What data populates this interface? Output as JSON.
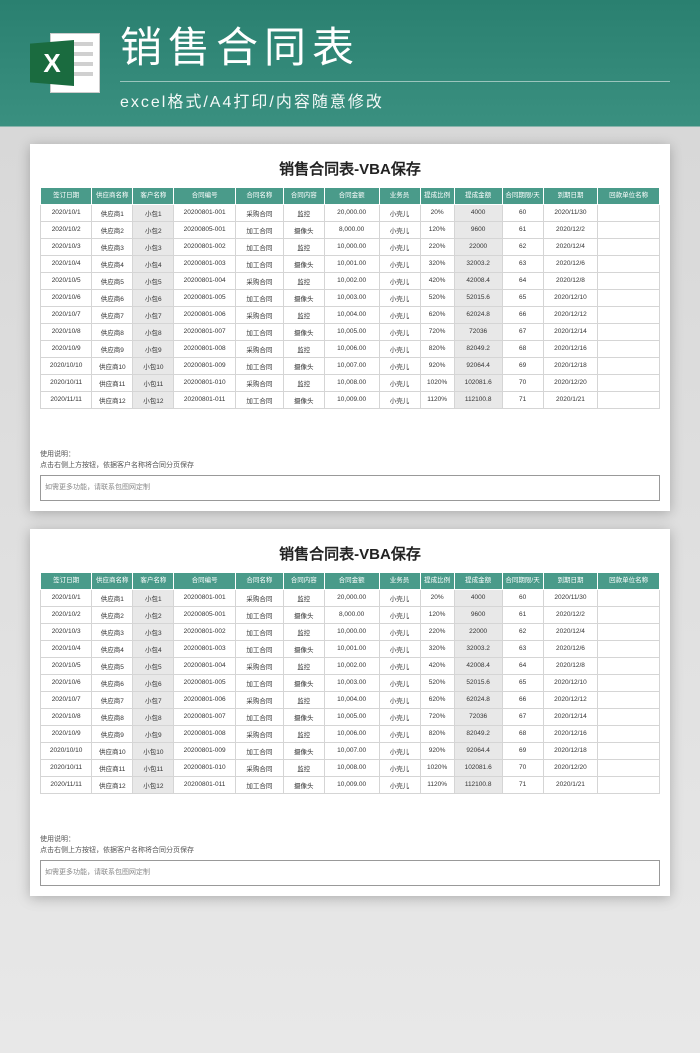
{
  "header": {
    "main_title": "销售合同表",
    "sub_title": "excel格式/A4打印/内容随意修改",
    "icon_letter": "X"
  },
  "sheet": {
    "title": "销售合同表-VBA保存",
    "columns": [
      "签订日期",
      "供应商名称",
      "客户名称",
      "合同编号",
      "合同名称",
      "合同内容",
      "合同金额",
      "业务员",
      "提成比例",
      "提成金额",
      "合同期限/天",
      "到期日期",
      "回款单位名称"
    ],
    "rows": [
      [
        "2020/10/1",
        "供应商1",
        "小包1",
        "20200801-001",
        "采购合同",
        "监控",
        "20,000.00",
        "小壳儿",
        "20%",
        "4000",
        "60",
        "2020/11/30",
        ""
      ],
      [
        "2020/10/2",
        "供应商2",
        "小包2",
        "20200805-001",
        "加工合同",
        "摄像头",
        "8,000.00",
        "小壳儿",
        "120%",
        "9600",
        "61",
        "2020/12/2",
        ""
      ],
      [
        "2020/10/3",
        "供应商3",
        "小包3",
        "20200801-002",
        "加工合同",
        "监控",
        "10,000.00",
        "小壳儿",
        "220%",
        "22000",
        "62",
        "2020/12/4",
        ""
      ],
      [
        "2020/10/4",
        "供应商4",
        "小包4",
        "20200801-003",
        "加工合同",
        "摄像头",
        "10,001.00",
        "小壳儿",
        "320%",
        "32003.2",
        "63",
        "2020/12/6",
        ""
      ],
      [
        "2020/10/5",
        "供应商5",
        "小包5",
        "20200801-004",
        "采购合同",
        "监控",
        "10,002.00",
        "小壳儿",
        "420%",
        "42008.4",
        "64",
        "2020/12/8",
        ""
      ],
      [
        "2020/10/6",
        "供应商6",
        "小包6",
        "20200801-005",
        "加工合同",
        "摄像头",
        "10,003.00",
        "小壳儿",
        "520%",
        "52015.6",
        "65",
        "2020/12/10",
        ""
      ],
      [
        "2020/10/7",
        "供应商7",
        "小包7",
        "20200801-006",
        "采购合同",
        "监控",
        "10,004.00",
        "小壳儿",
        "620%",
        "62024.8",
        "66",
        "2020/12/12",
        ""
      ],
      [
        "2020/10/8",
        "供应商8",
        "小包8",
        "20200801-007",
        "加工合同",
        "摄像头",
        "10,005.00",
        "小壳儿",
        "720%",
        "72036",
        "67",
        "2020/12/14",
        ""
      ],
      [
        "2020/10/9",
        "供应商9",
        "小包9",
        "20200801-008",
        "采购合同",
        "监控",
        "10,006.00",
        "小壳儿",
        "820%",
        "82049.2",
        "68",
        "2020/12/16",
        ""
      ],
      [
        "2020/10/10",
        "供应商10",
        "小包10",
        "20200801-009",
        "加工合同",
        "摄像头",
        "10,007.00",
        "小壳儿",
        "920%",
        "92064.4",
        "69",
        "2020/12/18",
        ""
      ],
      [
        "2020/10/11",
        "供应商11",
        "小包11",
        "20200801-010",
        "采购合同",
        "监控",
        "10,008.00",
        "小壳儿",
        "1020%",
        "102081.6",
        "70",
        "2020/12/20",
        ""
      ],
      [
        "2020/11/11",
        "供应商12",
        "小包12",
        "20200801-011",
        "加工合同",
        "摄像头",
        "10,009.00",
        "小壳儿",
        "1120%",
        "112100.8",
        "71",
        "2020/1/21",
        ""
      ]
    ],
    "highlight_cols": [
      2,
      9
    ],
    "note_label": "使用说明：",
    "note_text": "点击右侧上方按钮，依据客户名称将合同分页保存",
    "note_box": "如需更多功能，请联系包图网定制"
  }
}
